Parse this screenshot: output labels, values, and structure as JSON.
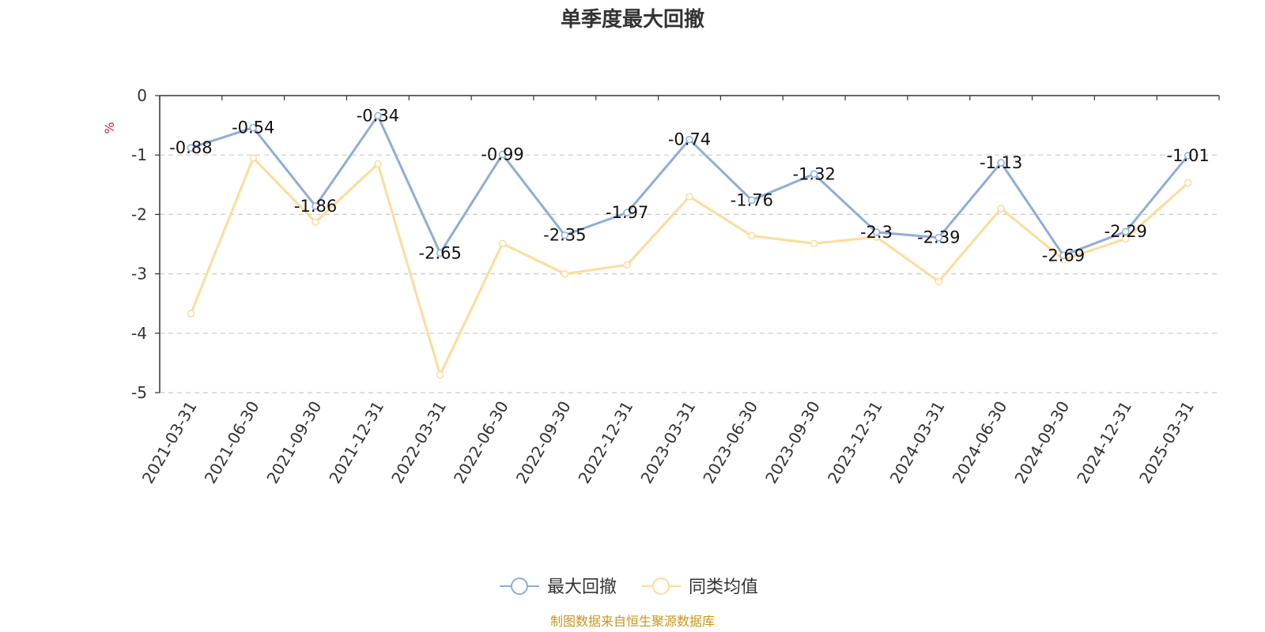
{
  "chart_data": {
    "type": "line",
    "title": "单季度最大回撤",
    "ylabel": "%",
    "ylim": [
      -5,
      0
    ],
    "yticks": [
      0,
      -1,
      -2,
      -3,
      -4,
      -5
    ],
    "grid": true,
    "legend_position": "bottom",
    "categories": [
      "2021-03-31",
      "2021-06-30",
      "2021-09-30",
      "2021-12-31",
      "2022-03-31",
      "2022-06-30",
      "2022-09-30",
      "2022-12-31",
      "2023-03-31",
      "2023-06-30",
      "2023-09-30",
      "2023-12-31",
      "2024-03-31",
      "2024-06-30",
      "2024-09-30",
      "2024-12-31",
      "2025-03-31"
    ],
    "series": [
      {
        "name": "最大回撤",
        "color": "#8fadd9",
        "show_labels": true,
        "values": [
          -0.88,
          -0.54,
          -1.86,
          -0.34,
          -2.65,
          -0.99,
          -2.35,
          -1.97,
          -0.74,
          -1.76,
          -1.32,
          -2.3,
          -2.39,
          -1.13,
          -2.69,
          -2.29,
          -1.01
        ]
      },
      {
        "name": "同类均值",
        "color": "#fddc9b",
        "show_labels": false,
        "values": [
          -3.67,
          -1.05,
          -2.13,
          -1.15,
          -4.7,
          -2.49,
          -3.0,
          -2.85,
          -1.7,
          -2.36,
          -2.49,
          -2.38,
          -3.13,
          -1.9,
          -2.76,
          -2.41,
          -1.47
        ]
      }
    ],
    "source": "制图数据来自恒生聚源数据库"
  }
}
